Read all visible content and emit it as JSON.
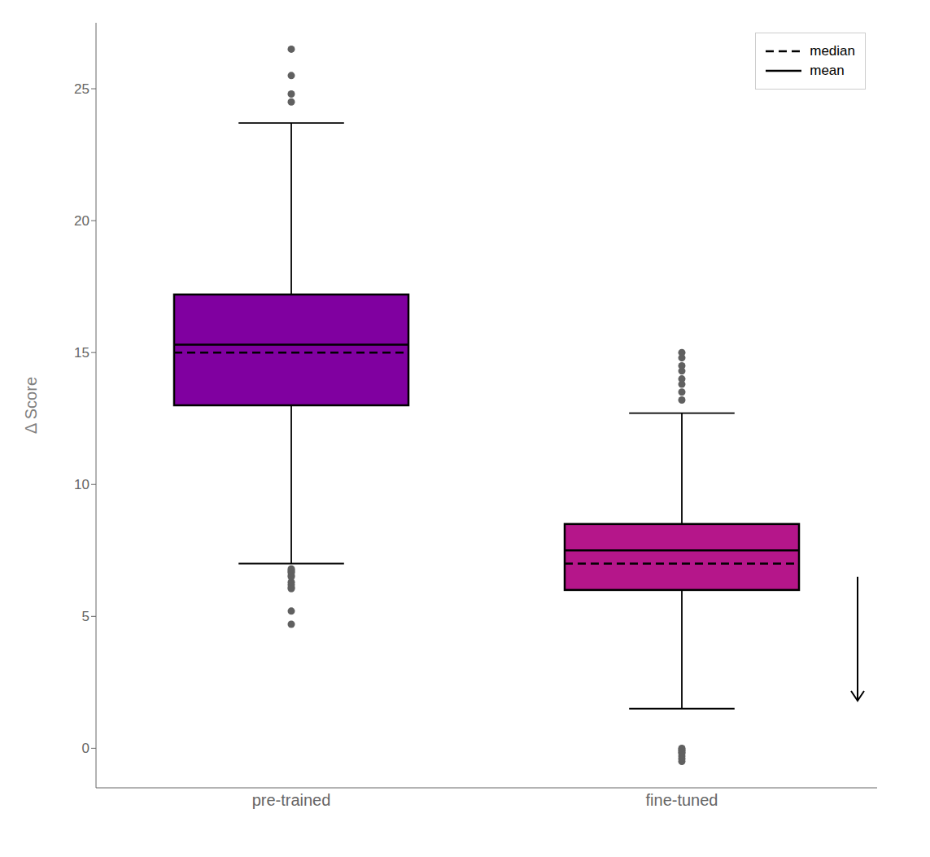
{
  "chart_data": {
    "type": "box",
    "categories": [
      "pre-trained",
      "fine-tuned"
    ],
    "boxes": [
      {
        "color": "#8000A0",
        "q1": 13.0,
        "median": 15.0,
        "mean": 15.3,
        "q3": 17.2,
        "whisker_low": 7.0,
        "whisker_high": 23.7
      },
      {
        "color": "#B5168A",
        "q1": 6.0,
        "median": 7.0,
        "mean": 7.5,
        "q3": 8.5,
        "whisker_low": 1.5,
        "whisker_high": 12.7
      }
    ],
    "outliers": {
      "color": "#606060",
      "values": [
        [
          4.7,
          5.2,
          6.05,
          6.1,
          6.2,
          6.3,
          6.5,
          6.55,
          6.65,
          6.7,
          6.75,
          6.8,
          24.5,
          24.8,
          25.5,
          26.5
        ],
        [
          -0.5,
          -0.4,
          -0.3,
          -0.2,
          -0.15,
          -0.1,
          -0.05,
          0.0,
          13.2,
          13.5,
          13.8,
          14.0,
          14.3,
          14.5,
          14.8,
          15.0
        ]
      ]
    },
    "box_lines": [
      {
        "name": "median",
        "line_style": "dashed"
      },
      {
        "name": "mean",
        "line_style": "solid"
      }
    ],
    "ylabel": "Δ Score",
    "ylim": [
      -1.5,
      27.5
    ],
    "yticks": [
      0,
      5,
      10,
      15,
      20,
      25
    ],
    "grid": false,
    "legend": "upper right",
    "arrow": {
      "y_start": 6.5,
      "y_end": 1.8
    }
  }
}
